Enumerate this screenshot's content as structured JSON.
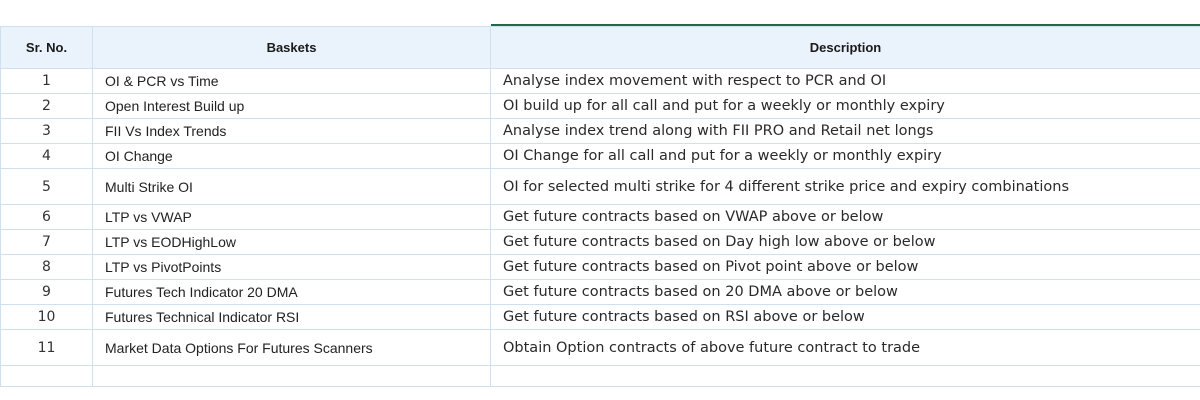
{
  "table": {
    "headers": {
      "sr_no": "Sr. No.",
      "baskets": "Baskets",
      "description": "Description"
    },
    "rows": [
      {
        "sr": "1",
        "basket": "OI & PCR vs Time",
        "description": "Analyse index movement with respect to PCR and OI"
      },
      {
        "sr": "2",
        "basket": "Open Interest Build up",
        "description": "OI build up for all call and put for a weekly or monthly expiry"
      },
      {
        "sr": "3",
        "basket": "FII Vs Index Trends",
        "description": "Analyse index trend along with FII PRO and Retail net longs"
      },
      {
        "sr": "4",
        "basket": "OI Change",
        "description": "OI Change for all call and put for a weekly or monthly expiry"
      },
      {
        "sr": "5",
        "basket": "Multi Strike OI",
        "description": "OI for selected multi strike for 4 different strike price and expiry combinations"
      },
      {
        "sr": "6",
        "basket": "LTP vs VWAP",
        "description": "Get future contracts based on VWAP above or below"
      },
      {
        "sr": "7",
        "basket": "LTP vs EODHighLow",
        "description": "Get future contracts based on Day high low above or below"
      },
      {
        "sr": "8",
        "basket": "LTP vs PivotPoints",
        "description": "Get future contracts based on Pivot point above or below"
      },
      {
        "sr": "9",
        "basket": "Futures Tech Indicator 20 DMA",
        "description": "Get future contracts based on 20 DMA above or below"
      },
      {
        "sr": "10",
        "basket": "Futures Technical Indicator RSI",
        "description": "Get future contracts based on RSI above or below"
      },
      {
        "sr": "11",
        "basket": "Market Data Options For Futures Scanners",
        "description": "Obtain Option contracts of above future contract to trade"
      }
    ]
  },
  "colors": {
    "header_bg": "#eaf2fb",
    "grid_line": "#cfe0ee",
    "accent": "#1e6b4a"
  }
}
